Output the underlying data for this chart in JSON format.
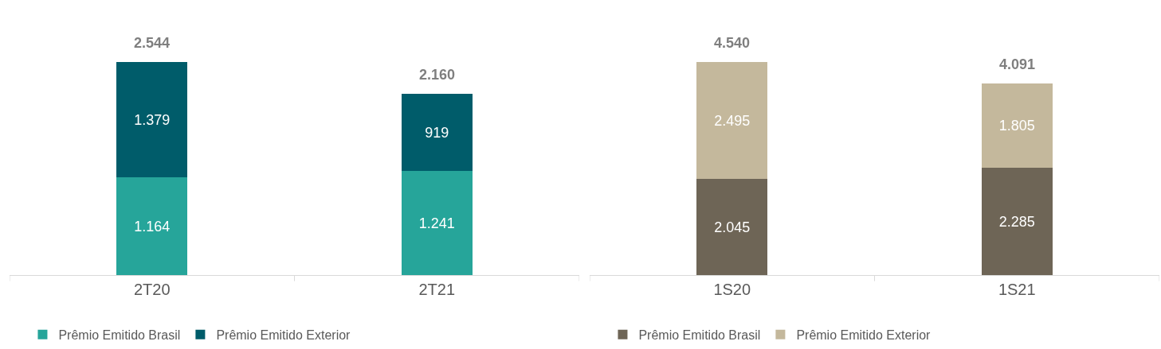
{
  "chart_data": [
    {
      "type": "bar",
      "stacked": true,
      "categories": [
        "2T20",
        "2T21"
      ],
      "legend": "bottom",
      "totals": [
        "2.544",
        "2.160"
      ],
      "series": [
        {
          "name": "Prêmio Emitido Brasil",
          "color": "#26a59a",
          "values": [
            1164,
            1241
          ],
          "value_labels": [
            "1.164",
            "1.241"
          ]
        },
        {
          "name": "Prêmio Emitido Exterior",
          "color": "#005c6a",
          "values": [
            1379,
            919
          ],
          "value_labels": [
            "1.379",
            "919"
          ]
        }
      ]
    },
    {
      "type": "bar",
      "stacked": true,
      "categories": [
        "1S20",
        "1S21"
      ],
      "legend": "bottom",
      "totals": [
        "4.540",
        "4.091"
      ],
      "series": [
        {
          "name": "Prêmio Emitido Brasil",
          "color": "#6e6556",
          "values": [
            2045,
            2285
          ],
          "value_labels": [
            "2.045",
            "2.285"
          ]
        },
        {
          "name": "Prêmio Emitido Exterior",
          "color": "#c4b89c",
          "values": [
            2495,
            1805
          ],
          "value_labels": [
            "2.495",
            "1.805"
          ]
        }
      ]
    }
  ]
}
